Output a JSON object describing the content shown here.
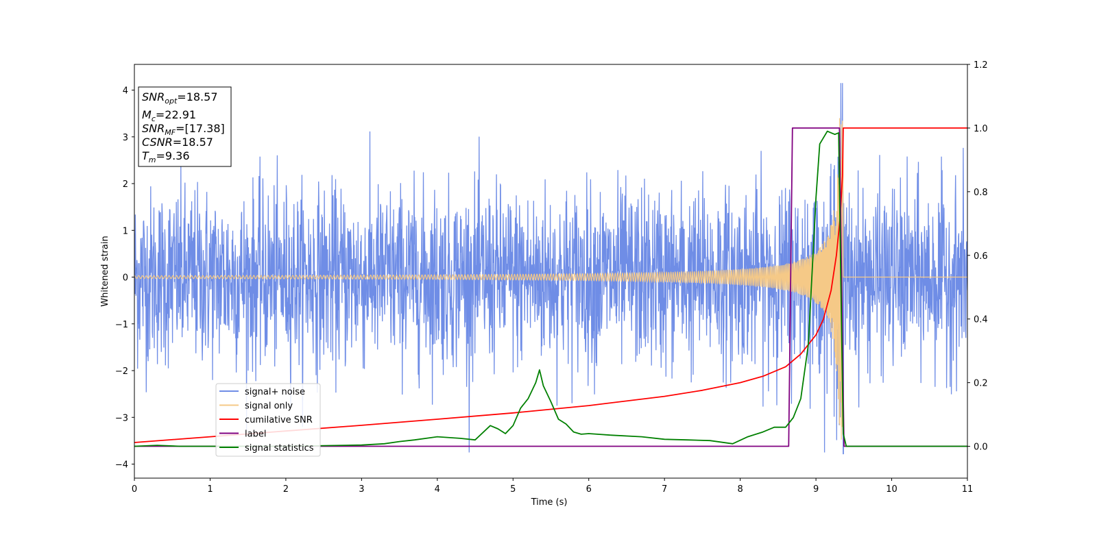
{
  "chart_data": {
    "type": "line",
    "xlabel": "Time (s)",
    "ylabel": "Whitened strain",
    "xlim": [
      0,
      11
    ],
    "ylim": [
      -4.3,
      4.55
    ],
    "y2lim": [
      -0.1,
      1.2
    ],
    "x_ticks": [
      "0",
      "1",
      "2",
      "3",
      "4",
      "5",
      "6",
      "7",
      "8",
      "9",
      "10",
      "11"
    ],
    "y_ticks": [
      "4",
      "3",
      "2",
      "1",
      "0",
      "−1",
      "−2",
      "−3",
      "−4"
    ],
    "y2_ticks": [
      "1.2",
      "1.0",
      "0.8",
      "0.6",
      "0.4",
      "0.2",
      "0.0"
    ],
    "grid": false,
    "legend_placement": "lower-left",
    "annotation": {
      "lines": [
        {
          "var": "SNR",
          "sub": "opt",
          "val": "=18.57"
        },
        {
          "var": "M",
          "sub": "c",
          "val": "=22.91"
        },
        {
          "var": "SNR",
          "sub": "MF",
          "val": "=[17.38]"
        },
        {
          "var": "CSNR",
          "sub": "",
          "val": "=18.57"
        },
        {
          "var": "T",
          "sub": "m",
          "val": "=9.36"
        }
      ]
    },
    "series": [
      {
        "name": "signal+ noise",
        "color": "#6f8de6",
        "axis": "left",
        "kind": "noise",
        "description_values": {
          "std": 0.95,
          "min": -3.8,
          "max": 4.15,
          "peak_time": 9.36
        }
      },
      {
        "name": "signal only",
        "color": "#f5c987",
        "axis": "left",
        "kind": "chirp",
        "description_values": {
          "merger_time": 9.36,
          "peak_amplitude": 3.5
        }
      },
      {
        "name": "cumilative SNR",
        "color": "#ff0000",
        "axis": "right",
        "x": [
          0,
          1,
          2,
          3,
          4,
          5,
          6,
          7,
          7.5,
          8,
          8.3,
          8.6,
          8.8,
          9.0,
          9.1,
          9.2,
          9.27,
          9.32,
          9.35,
          9.36,
          11
        ],
        "values": [
          0.012,
          0.03,
          0.048,
          0.066,
          0.085,
          0.105,
          0.128,
          0.157,
          0.176,
          0.2,
          0.22,
          0.25,
          0.29,
          0.35,
          0.4,
          0.49,
          0.6,
          0.72,
          0.85,
          1.0,
          1.0
        ]
      },
      {
        "name": "label",
        "color": "#800080",
        "axis": "right",
        "x": [
          0,
          8.64,
          8.69,
          9.31,
          9.37,
          11
        ],
        "values": [
          0.0,
          0.0,
          1.0,
          1.0,
          0.0,
          0.0
        ]
      },
      {
        "name": "signal statistics",
        "color": "#008000",
        "axis": "right",
        "x": [
          0,
          0.3,
          0.6,
          1.0,
          2.0,
          2.5,
          3.0,
          3.3,
          3.5,
          3.7,
          4.0,
          4.3,
          4.5,
          4.7,
          4.8,
          4.9,
          5.0,
          5.1,
          5.2,
          5.3,
          5.35,
          5.4,
          5.5,
          5.6,
          5.7,
          5.8,
          5.9,
          6.0,
          6.3,
          6.7,
          7.0,
          7.3,
          7.6,
          7.9,
          8.1,
          8.3,
          8.45,
          8.6,
          8.7,
          8.8,
          8.9,
          9.0,
          9.05,
          9.15,
          9.2,
          9.25,
          9.3,
          9.33,
          9.36,
          9.4,
          9.45,
          11
        ],
        "values": [
          0.0,
          0.003,
          0.0,
          0.0,
          0.0,
          0.002,
          0.004,
          0.008,
          0.015,
          0.02,
          0.03,
          0.025,
          0.02,
          0.065,
          0.055,
          0.04,
          0.065,
          0.12,
          0.15,
          0.2,
          0.24,
          0.19,
          0.14,
          0.085,
          0.07,
          0.045,
          0.038,
          0.04,
          0.035,
          0.03,
          0.022,
          0.02,
          0.018,
          0.008,
          0.03,
          0.045,
          0.06,
          0.06,
          0.09,
          0.15,
          0.32,
          0.78,
          0.95,
          0.99,
          0.985,
          0.98,
          0.985,
          0.5,
          0.04,
          0.0,
          0.0,
          0.0
        ]
      }
    ]
  }
}
